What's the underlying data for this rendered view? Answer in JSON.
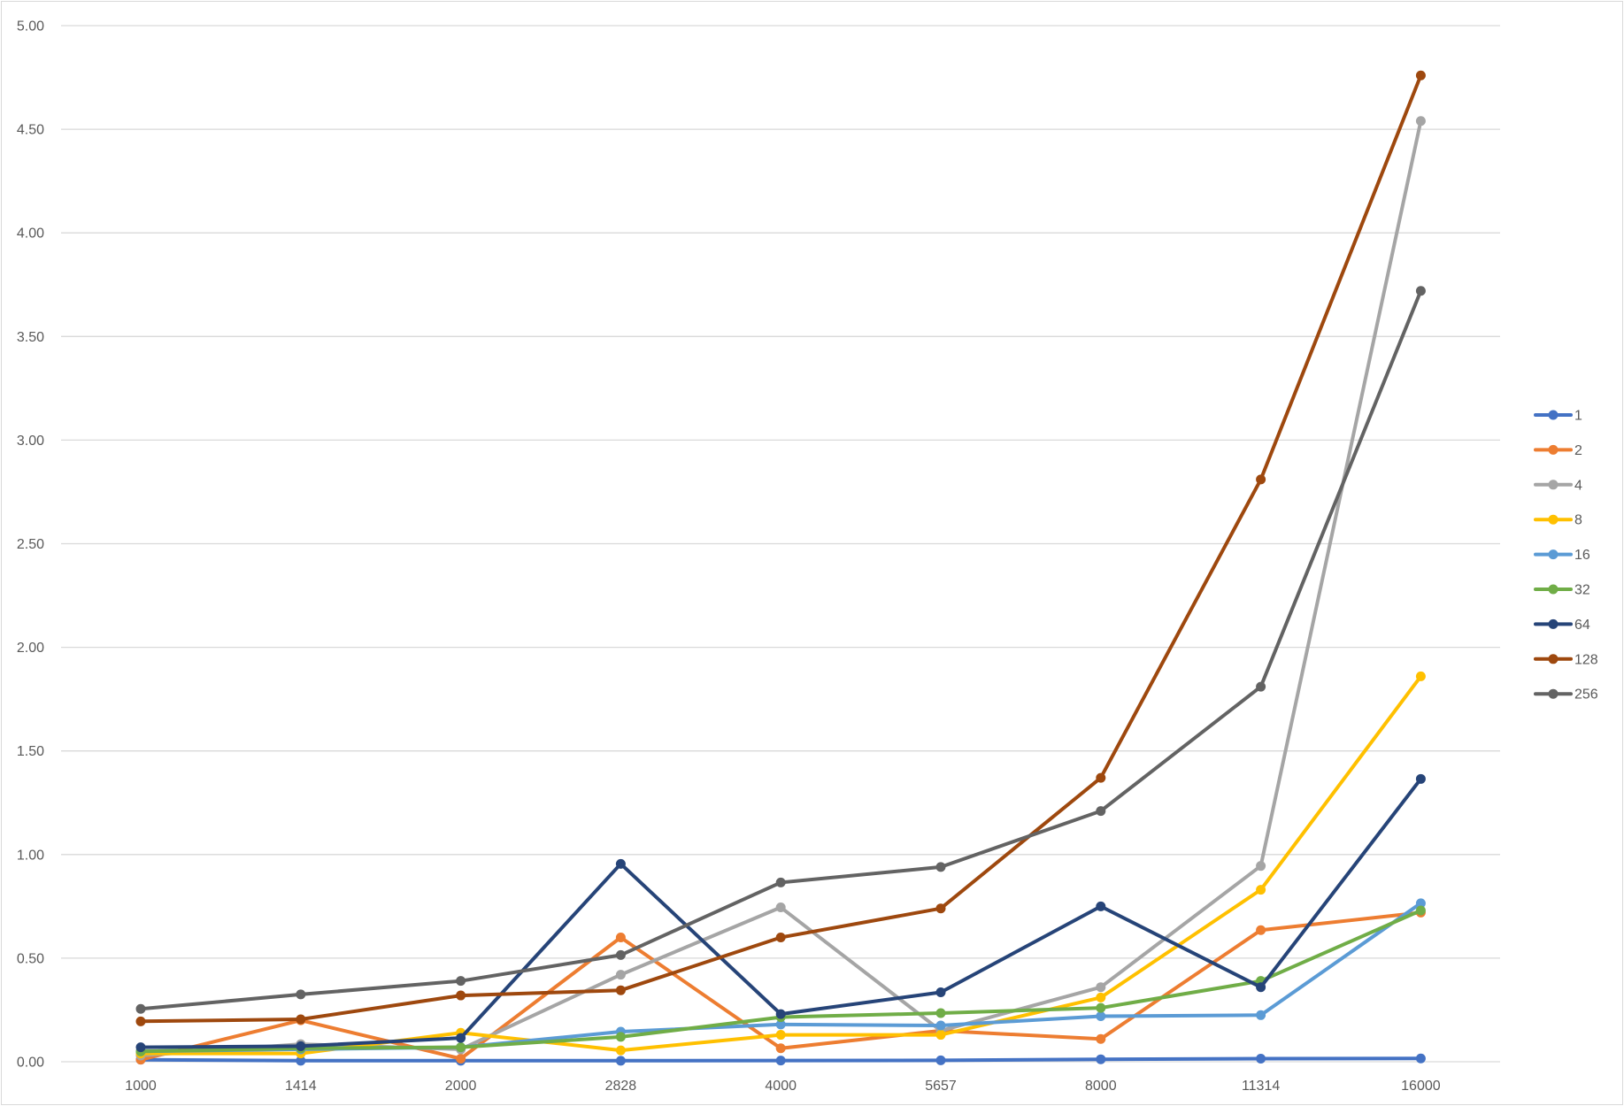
{
  "chart_data": {
    "type": "line",
    "title": "",
    "xlabel": "",
    "ylabel": "",
    "x": [
      "1000",
      "1414",
      "2000",
      "2828",
      "4000",
      "5657",
      "8000",
      "11314",
      "16000"
    ],
    "ylim": [
      0,
      5
    ],
    "y_ticks": [
      "0.00",
      "0.50",
      "1.00",
      "1.50",
      "2.00",
      "2.50",
      "3.00",
      "3.50",
      "4.00",
      "4.50",
      "5.00"
    ],
    "grid": "horizontal",
    "legend_position": "right",
    "series": [
      {
        "name": "1",
        "color": "#4472C4",
        "values": [
          0.01,
          0.005,
          0.005,
          0.005,
          0.006,
          0.007,
          0.012,
          0.015,
          0.016
        ]
      },
      {
        "name": "2",
        "color": "#ED7D31",
        "values": [
          0.01,
          0.2,
          0.015,
          0.6,
          0.065,
          0.15,
          0.11,
          0.635,
          0.72
        ]
      },
      {
        "name": "4",
        "color": "#A5A5A5",
        "values": [
          0.03,
          0.085,
          0.06,
          0.42,
          0.745,
          0.15,
          0.36,
          0.945,
          4.54
        ]
      },
      {
        "name": "8",
        "color": "#FFC000",
        "values": [
          0.04,
          0.04,
          0.14,
          0.055,
          0.13,
          0.13,
          0.31,
          0.83,
          1.86
        ]
      },
      {
        "name": "16",
        "color": "#5B9BD5",
        "values": [
          0.05,
          0.06,
          0.07,
          0.145,
          0.18,
          0.175,
          0.22,
          0.225,
          0.765
        ]
      },
      {
        "name": "32",
        "color": "#70AD47",
        "values": [
          0.05,
          0.065,
          0.07,
          0.12,
          0.215,
          0.235,
          0.26,
          0.39,
          0.73
        ]
      },
      {
        "name": "64",
        "color": "#264478",
        "values": [
          0.07,
          0.075,
          0.115,
          0.955,
          0.23,
          0.335,
          0.75,
          0.36,
          1.365
        ]
      },
      {
        "name": "128",
        "color": "#9E480E",
        "values": [
          0.195,
          0.205,
          0.32,
          0.345,
          0.6,
          0.74,
          1.37,
          2.81,
          4.76
        ]
      },
      {
        "name": "256",
        "color": "#636363",
        "values": [
          0.255,
          0.325,
          0.39,
          0.515,
          0.865,
          0.94,
          1.21,
          1.81,
          3.72
        ]
      }
    ]
  }
}
